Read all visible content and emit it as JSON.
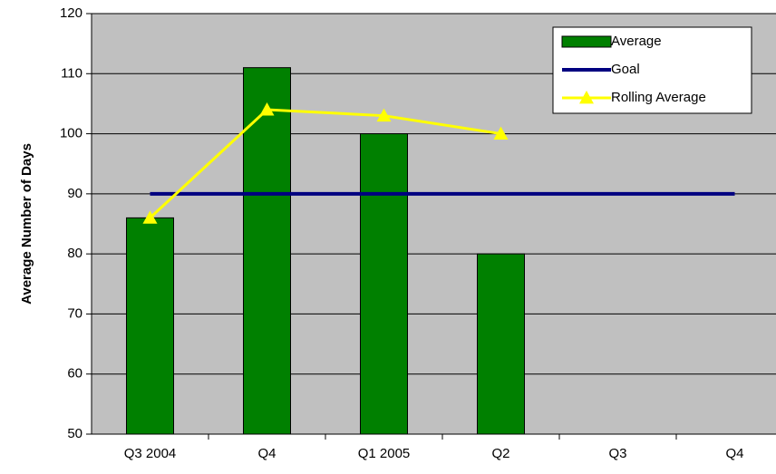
{
  "chart_data": {
    "type": "bar",
    "ylabel": "Average Number of Days",
    "categories": [
      "Q3 2004",
      "Q4",
      "Q1 2005",
      "Q2",
      "Q3",
      "Q4"
    ],
    "series": [
      {
        "name": "Average",
        "type": "bar",
        "color": "#008000",
        "values": [
          86,
          111,
          100,
          80,
          null,
          null
        ]
      },
      {
        "name": "Goal",
        "type": "line",
        "color": "#000080",
        "values": [
          90,
          90,
          90,
          90,
          90,
          90
        ]
      },
      {
        "name": "Rolling Average",
        "type": "line",
        "marker": "triangle",
        "color": "#ffff00",
        "values": [
          86,
          104,
          103,
          100,
          null,
          null
        ]
      }
    ],
    "ylim": [
      50,
      120
    ],
    "yticks": [
      50,
      60,
      70,
      80,
      90,
      100,
      110,
      120
    ],
    "grid": true,
    "background": "#c0c0c0",
    "legend": "upper right"
  }
}
